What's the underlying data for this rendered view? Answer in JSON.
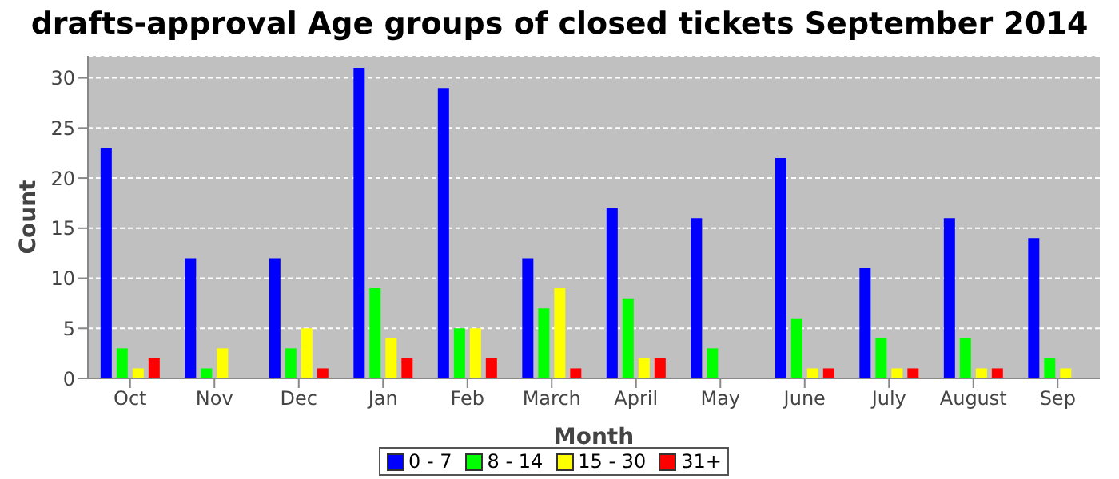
{
  "chart_data": {
    "type": "bar",
    "title": "drafts-approval Age groups of closed tickets September 2014",
    "xlabel": "Month",
    "ylabel": "Count",
    "categories": [
      "Oct",
      "Nov",
      "Dec",
      "Jan",
      "Feb",
      "March",
      "April",
      "May",
      "June",
      "July",
      "August",
      "Sep"
    ],
    "series": [
      {
        "name": "0 - 7",
        "color": "#0000ff",
        "values": [
          23,
          12,
          12,
          31,
          29,
          12,
          17,
          16,
          22,
          11,
          16,
          14
        ]
      },
      {
        "name": "8 - 14",
        "color": "#00ff00",
        "values": [
          3,
          1,
          3,
          9,
          5,
          7,
          8,
          3,
          6,
          4,
          4,
          2
        ]
      },
      {
        "name": "15 - 30",
        "color": "#ffff00",
        "values": [
          1,
          3,
          5,
          4,
          5,
          9,
          2,
          0,
          1,
          1,
          1,
          1
        ]
      },
      {
        "name": "31+",
        "color": "#ff0000",
        "values": [
          2,
          0,
          1,
          2,
          2,
          1,
          2,
          0,
          1,
          1,
          1,
          0
        ]
      }
    ],
    "ylim": [
      0,
      32.2
    ],
    "yticks": [
      0,
      5,
      10,
      15,
      20,
      25,
      30
    ],
    "grid": "y",
    "legend": "bottom"
  }
}
